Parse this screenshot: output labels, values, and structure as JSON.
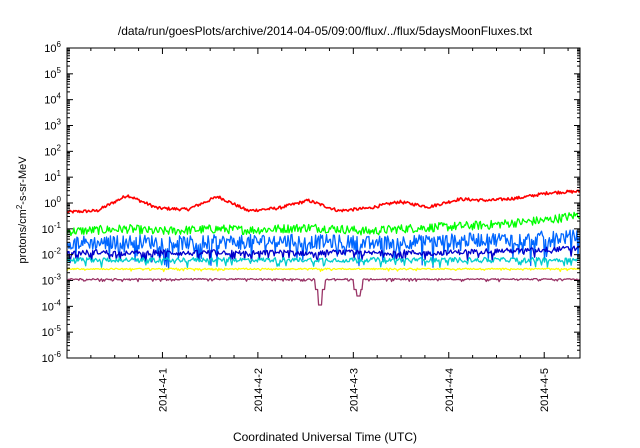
{
  "chart_data": {
    "type": "line",
    "title": "/data/run/goesPlots/archive/2014-04-05/09:00/flux/../flux/5daysMoonFluxes.txt",
    "xlabel": "Coordinated Universal Time (UTC)",
    "ylabel": {
      "prefix": "protons/cm",
      "sup": "2",
      "suffix": "-s-sr-MeV"
    },
    "y_scale": "log",
    "ylim_exp": [
      -6,
      6
    ],
    "y_ticks": [
      {
        "base": "10",
        "exp": "6"
      },
      {
        "base": "10",
        "exp": "5"
      },
      {
        "base": "10",
        "exp": "4"
      },
      {
        "base": "10",
        "exp": "3"
      },
      {
        "base": "10",
        "exp": "2"
      },
      {
        "base": "10",
        "exp": "1"
      },
      {
        "base": "10",
        "exp": "0"
      },
      {
        "base": "10",
        "exp": "-1"
      },
      {
        "base": "10",
        "exp": "-2"
      },
      {
        "base": "10",
        "exp": "-3"
      },
      {
        "base": "10",
        "exp": "-4"
      },
      {
        "base": "10",
        "exp": "-5"
      },
      {
        "base": "10",
        "exp": "-6"
      }
    ],
    "x_range_days": [
      "2014-03-31T00:00",
      "2014-04-05T09:00"
    ],
    "x_ticks": [
      "2014-4-1",
      "2014-4-2",
      "2014-4-3",
      "2014-4-4",
      "2014-4-5"
    ],
    "grid": false,
    "legend": "none",
    "series": [
      {
        "color": "#ff0000",
        "baseline_exp": [
          -0.35,
          -0.3,
          0.3,
          -0.2,
          -0.25,
          0.25,
          -0.3,
          -0.2,
          0.1,
          -0.3,
          -0.2,
          0.05,
          -0.15,
          0.15,
          0.1,
          0.2,
          0.4,
          0.45
        ],
        "spread_exp": 0.12
      },
      {
        "color": "#00ff00",
        "baseline_exp": [
          -1.1,
          -1.05,
          -1.0,
          -1.1,
          -1.05,
          -1.0,
          -1.05,
          -1.0,
          -0.95,
          -1.0,
          -1.1,
          -1.0,
          -0.95,
          -0.9,
          -0.85,
          -0.75,
          -0.65,
          -0.45
        ],
        "spread_exp": 0.35
      },
      {
        "color": "#0066ff",
        "baseline_exp": [
          -1.5,
          -1.55,
          -1.5,
          -1.5,
          -1.55,
          -1.5,
          -1.5,
          -1.45,
          -1.5,
          -1.5,
          -1.55,
          -1.5,
          -1.5,
          -1.45,
          -1.4,
          -1.4,
          -1.35,
          -1.3
        ],
        "spread_exp": 0.55
      },
      {
        "color": "#0000cc",
        "baseline_exp": [
          -1.95,
          -1.9,
          -1.95,
          -1.9,
          -1.95,
          -1.9,
          -1.95,
          -1.9,
          -1.95,
          -1.9,
          -1.95,
          -1.9,
          -1.95,
          -1.9,
          -1.85,
          -1.85,
          -1.8,
          -1.75
        ],
        "spread_exp": 0.2
      },
      {
        "color": "#00cccc",
        "baseline_exp": [
          -2.2,
          -2.2,
          -2.2,
          -2.2,
          -2.2,
          -2.2,
          -2.2,
          -2.2,
          -2.2,
          -2.2,
          -2.2,
          -2.2,
          -2.2,
          -2.2,
          -2.2,
          -2.2,
          -2.2,
          -2.2
        ],
        "spread_exp": 0.18
      },
      {
        "color": "#ffff00",
        "baseline_exp": [
          -2.55,
          -2.55,
          -2.55,
          -2.55,
          -2.55,
          -2.55,
          -2.55,
          -2.55,
          -2.55,
          -2.55,
          -2.55,
          -2.55,
          -2.55,
          -2.55,
          -2.55,
          -2.55,
          -2.55,
          -2.55
        ],
        "spread_exp": 0.05
      },
      {
        "color": "#993366",
        "baseline_exp": [
          -2.95,
          -2.95,
          -2.95,
          -2.95,
          -2.95,
          -2.95,
          -2.95,
          -2.95,
          -2.95,
          -2.95,
          -2.95,
          -2.95,
          -2.95,
          -2.95,
          -2.95,
          -2.95,
          -2.95,
          -2.95
        ],
        "spread_exp": 0.05,
        "dips": [
          {
            "day": 2.65,
            "exp": -3.95
          },
          {
            "day": 3.05,
            "exp": -3.6
          }
        ]
      }
    ]
  }
}
